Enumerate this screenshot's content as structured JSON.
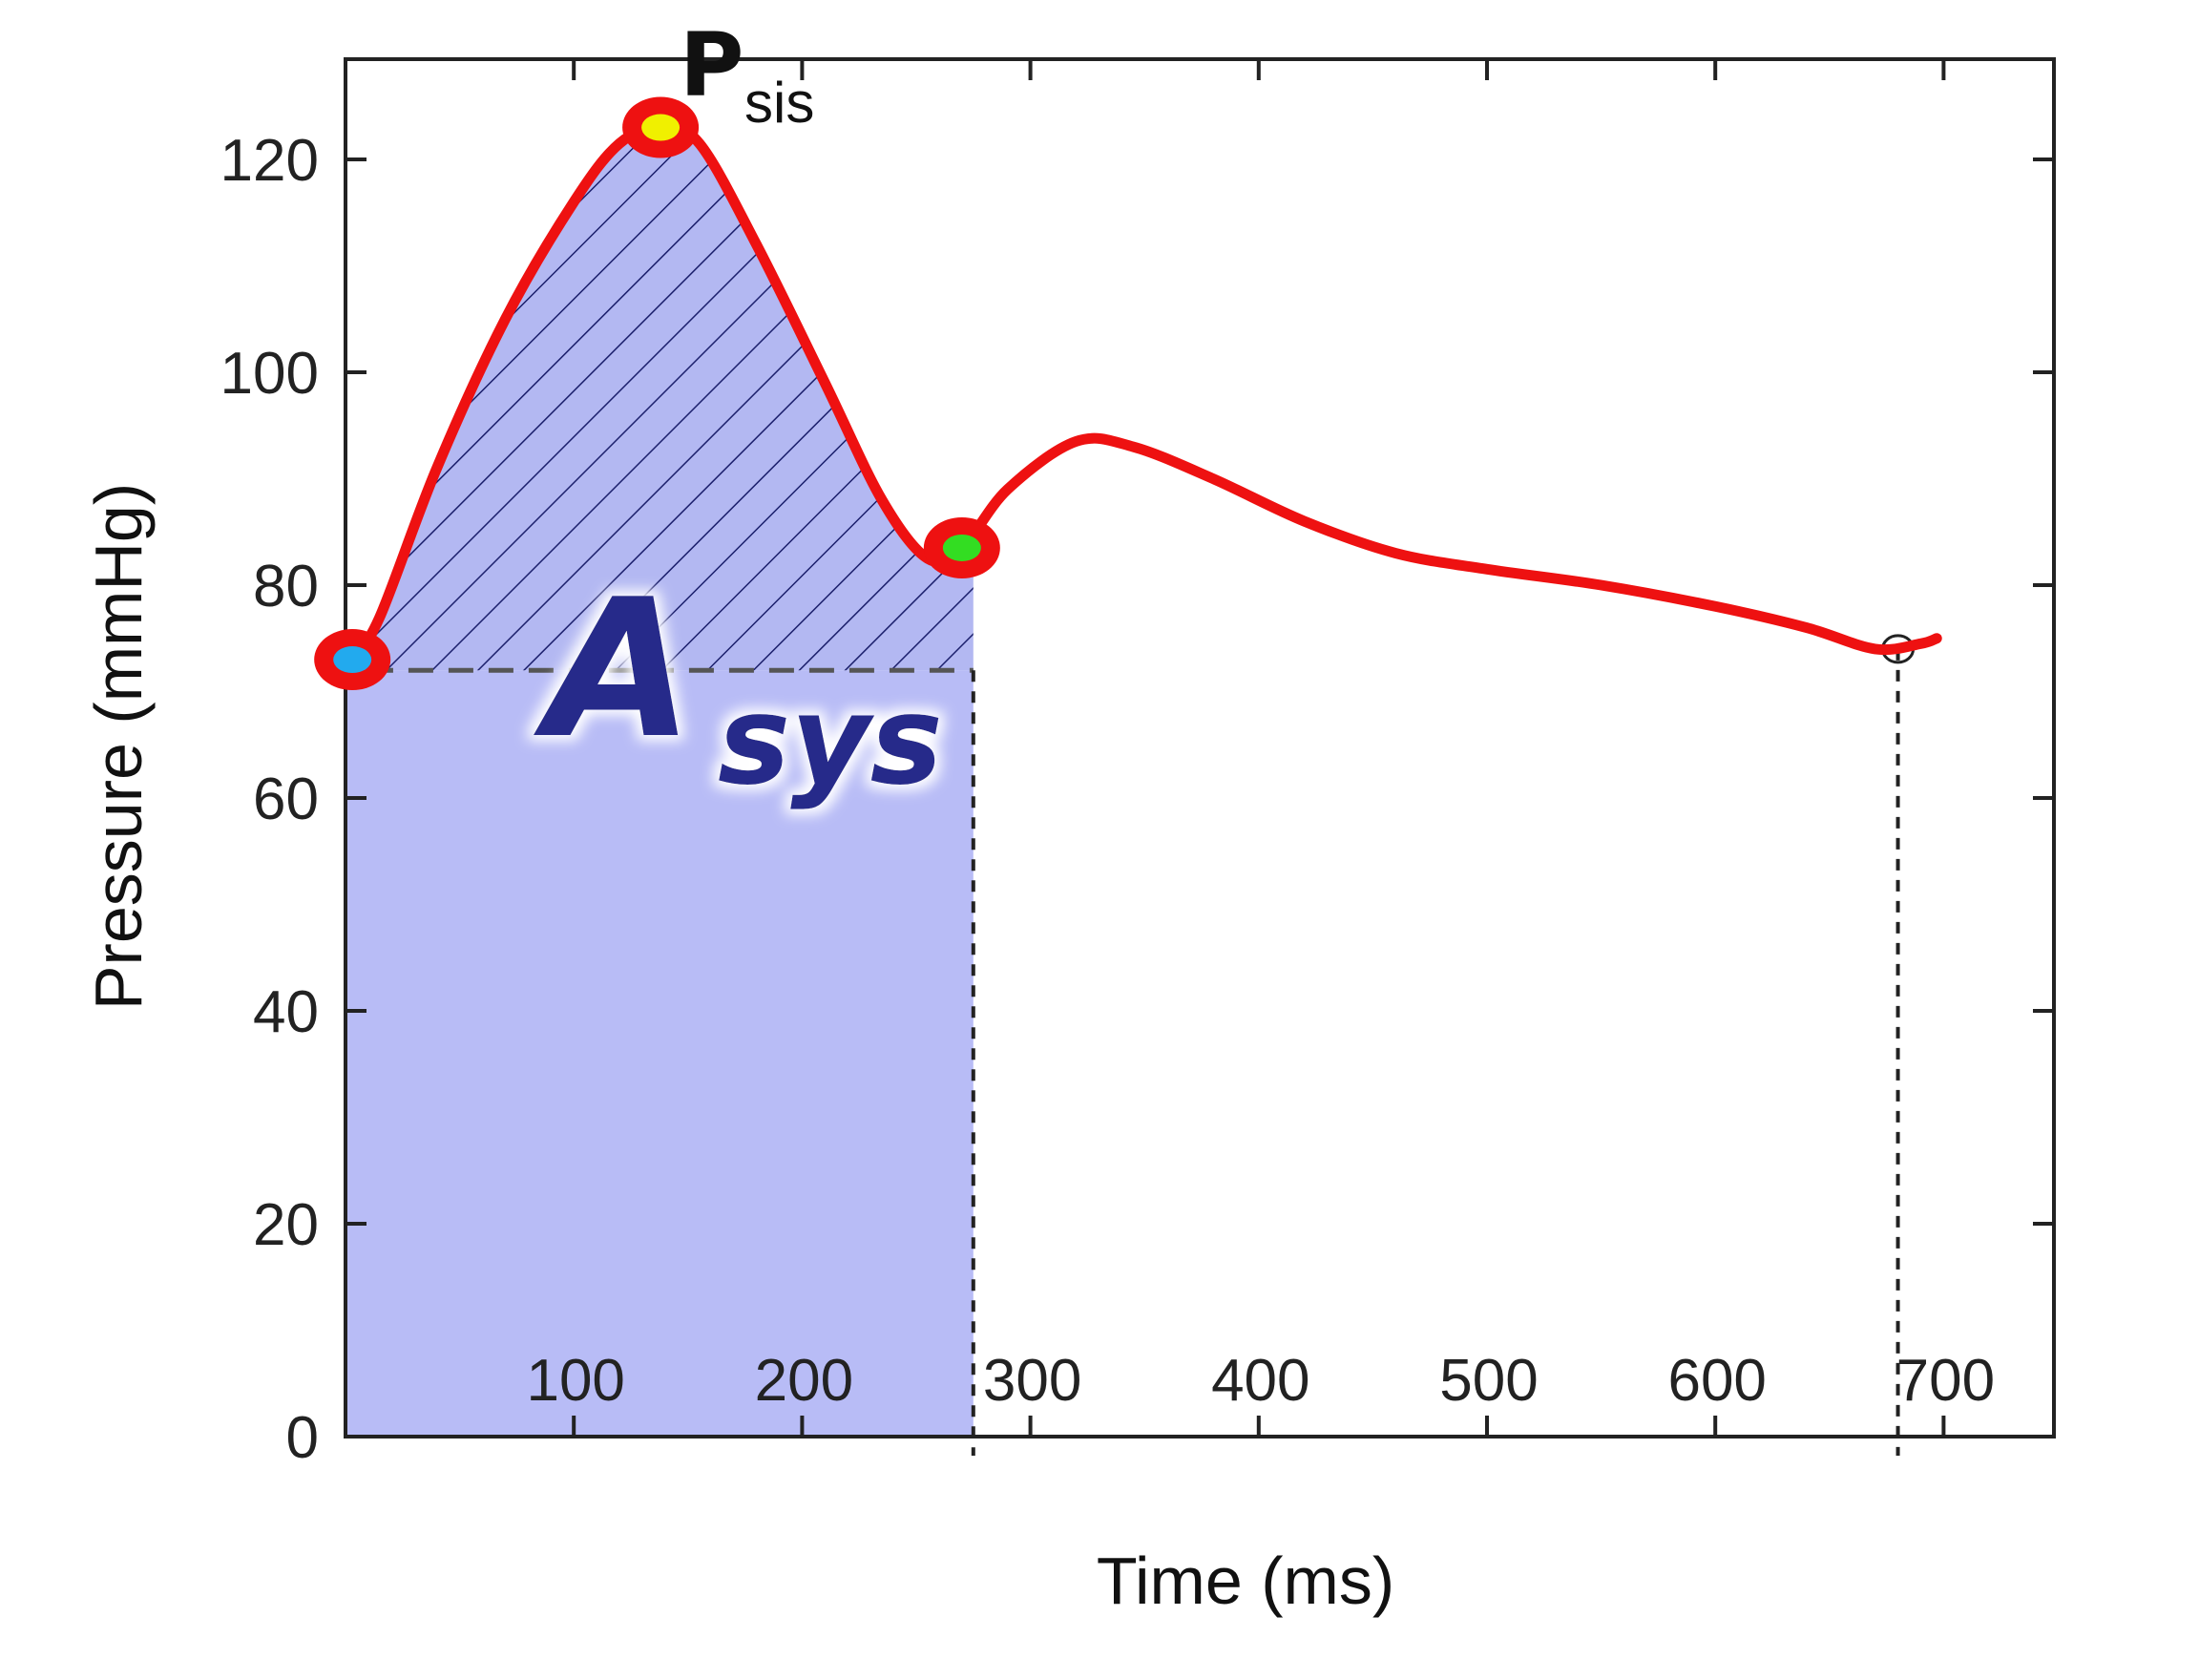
{
  "chart_data": {
    "type": "line",
    "title": "",
    "xlabel": "Time (ms)",
    "ylabel": "Pressure (mmHg)",
    "xlim": [
      0,
      750
    ],
    "ylim": [
      0,
      130
    ],
    "x_ticks": [
      100,
      200,
      300,
      400,
      500,
      600,
      700
    ],
    "y_ticks": [
      0,
      20,
      40,
      60,
      80,
      100,
      120
    ],
    "grid": false,
    "legend": "none",
    "series": [
      {
        "points": [
          [
            3,
            73
          ],
          [
            15,
            77
          ],
          [
            40,
            91
          ],
          [
            70,
            105
          ],
          [
            100,
            116
          ],
          [
            120,
            121.5
          ],
          [
            138,
            123
          ],
          [
            155,
            121.5
          ],
          [
            180,
            112
          ],
          [
            210,
            99
          ],
          [
            235,
            88
          ],
          [
            255,
            82.5
          ],
          [
            270,
            83.5
          ],
          [
            290,
            89
          ],
          [
            320,
            93.5
          ],
          [
            345,
            93
          ],
          [
            380,
            90
          ],
          [
            420,
            86
          ],
          [
            460,
            83
          ],
          [
            500,
            81.5
          ],
          [
            550,
            80
          ],
          [
            600,
            78
          ],
          [
            640,
            76
          ],
          [
            670,
            74
          ],
          [
            690,
            74.5
          ],
          [
            697,
            75
          ]
        ],
        "color": "#ee1111"
      }
    ],
    "markers": [
      {
        "t": 3,
        "p": 73,
        "fill": "#22aaee",
        "ring": "#ee1111"
      },
      {
        "t": 138,
        "p": 123,
        "fill": "#f0f000",
        "ring": "#ee1111"
      },
      {
        "t": 270,
        "p": 83.5,
        "fill": "#33dd22",
        "ring": "#ee1111"
      }
    ],
    "baseline_pressure": 72,
    "systole_end_time": 275,
    "cycle_end_time": 680,
    "annotations": [
      {
        "text": "P",
        "subscript": "sis"
      },
      {
        "text": "A",
        "subscript": "sys"
      }
    ],
    "colors": {
      "curve": "#ee1111",
      "systolic_area": "#b8bcf6",
      "hatch_area": "#b3b8f2",
      "hatch_lines": "#1b1f6c",
      "asys_text": "#262a8a",
      "axes": "#222222"
    }
  }
}
